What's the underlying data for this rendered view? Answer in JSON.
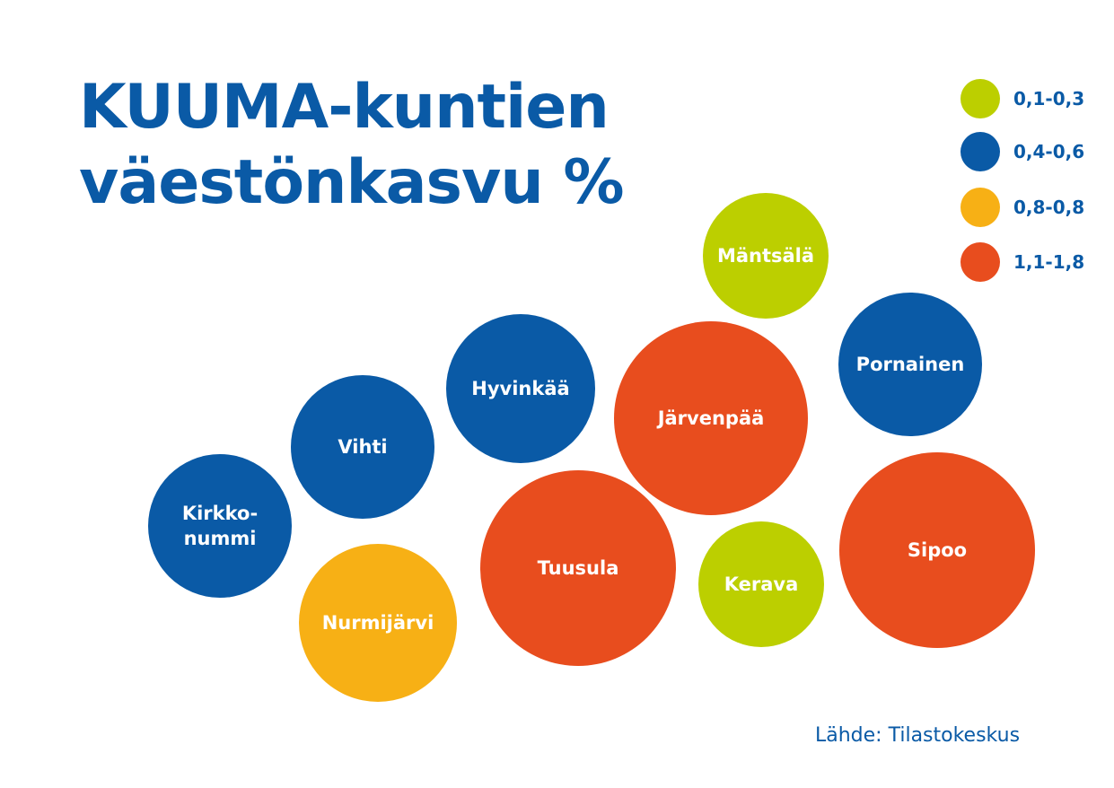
{
  "title_lines": [
    "KUUMA-kuntien",
    "väestönkasvu %"
  ],
  "source": "Lähde: Tilastokeskus",
  "colors": {
    "title": "#0a5aa6",
    "green": "#bccf00",
    "blue": "#0a5aa6",
    "yellow": "#f7b015",
    "orange": "#e84d1e",
    "label": "#ffffff"
  },
  "chart_data": {
    "type": "bubble",
    "legend": [
      {
        "label": "0,1-0,3",
        "color": "green"
      },
      {
        "label": "0,4-0,6",
        "color": "blue"
      },
      {
        "label": "0,8-0,8",
        "color": "yellow"
      },
      {
        "label": "1,1-1,8",
        "color": "orange"
      }
    ],
    "bubbles": [
      {
        "name": "Mäntsälä",
        "lines": [
          "Mäntsälä"
        ],
        "color": "green"
      },
      {
        "name": "Pornainen",
        "lines": [
          "Pornainen"
        ],
        "color": "blue"
      },
      {
        "name": "Hyvinkää",
        "lines": [
          "Hyvinkää"
        ],
        "color": "blue"
      },
      {
        "name": "Järvenpää",
        "lines": [
          "Järvenpää"
        ],
        "color": "orange"
      },
      {
        "name": "Vihti",
        "lines": [
          "Vihti"
        ],
        "color": "blue"
      },
      {
        "name": "Kirkkonummi",
        "lines": [
          "Kirkko-",
          "nummi"
        ],
        "color": "blue"
      },
      {
        "name": "Tuusula",
        "lines": [
          "Tuusula"
        ],
        "color": "orange"
      },
      {
        "name": "Kerava",
        "lines": [
          "Kerava"
        ],
        "color": "green"
      },
      {
        "name": "Sipoo",
        "lines": [
          "Sipoo"
        ],
        "color": "orange"
      },
      {
        "name": "Nurmijärvi",
        "lines": [
          "Nurmijärvi"
        ],
        "color": "yellow"
      }
    ]
  }
}
